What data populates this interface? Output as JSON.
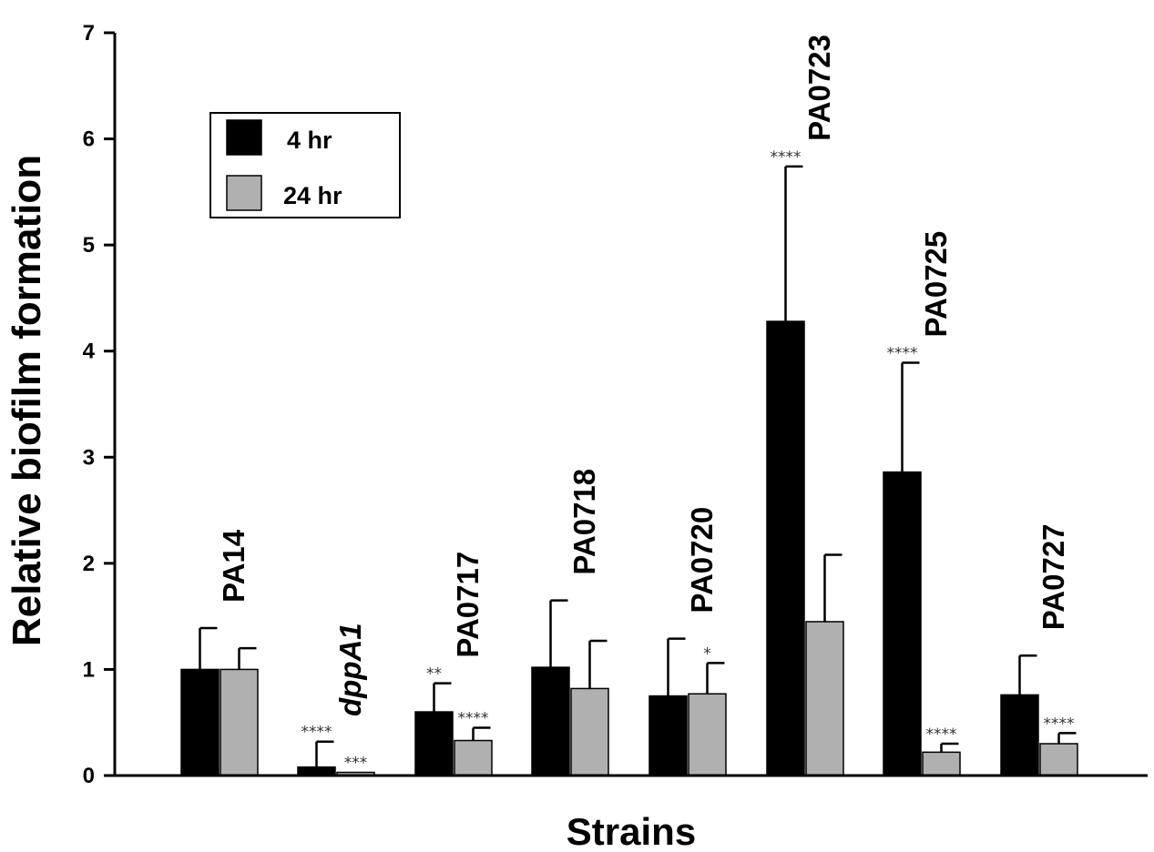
{
  "chart_data": {
    "type": "bar",
    "title": "",
    "xlabel": "Strains",
    "ylabel": "Relative biofilm formation",
    "ylim": [
      0,
      7
    ],
    "yticks": [
      "0",
      "1",
      "2",
      "3",
      "4",
      "5",
      "6",
      "7"
    ],
    "grid": false,
    "legend_position": "top-left",
    "categories": [
      "PA14",
      "dppA1",
      "PA0717",
      "PA0718",
      "PA0720",
      "PA0723",
      "PA0725",
      "PA0727"
    ],
    "italic_categories": [
      "dppA1"
    ],
    "series": [
      {
        "name": "4 hr",
        "color": "#000000",
        "values": [
          1.0,
          0.08,
          0.6,
          1.02,
          0.75,
          4.28,
          2.86,
          0.76
        ],
        "error": [
          0.39,
          0.24,
          0.27,
          0.63,
          0.54,
          1.46,
          1.03,
          0.37
        ],
        "significance": [
          "",
          "****",
          "**",
          "",
          "",
          "****",
          "****",
          ""
        ]
      },
      {
        "name": "24 hr",
        "color": "#b0b0b0",
        "values": [
          1.0,
          0.03,
          0.33,
          0.82,
          0.77,
          1.45,
          0.22,
          0.3
        ],
        "error": [
          0.2,
          0.0,
          0.12,
          0.45,
          0.29,
          0.63,
          0.08,
          0.1
        ],
        "significance": [
          "",
          "***",
          "****",
          "",
          "*",
          "",
          "****",
          "****"
        ]
      }
    ]
  }
}
